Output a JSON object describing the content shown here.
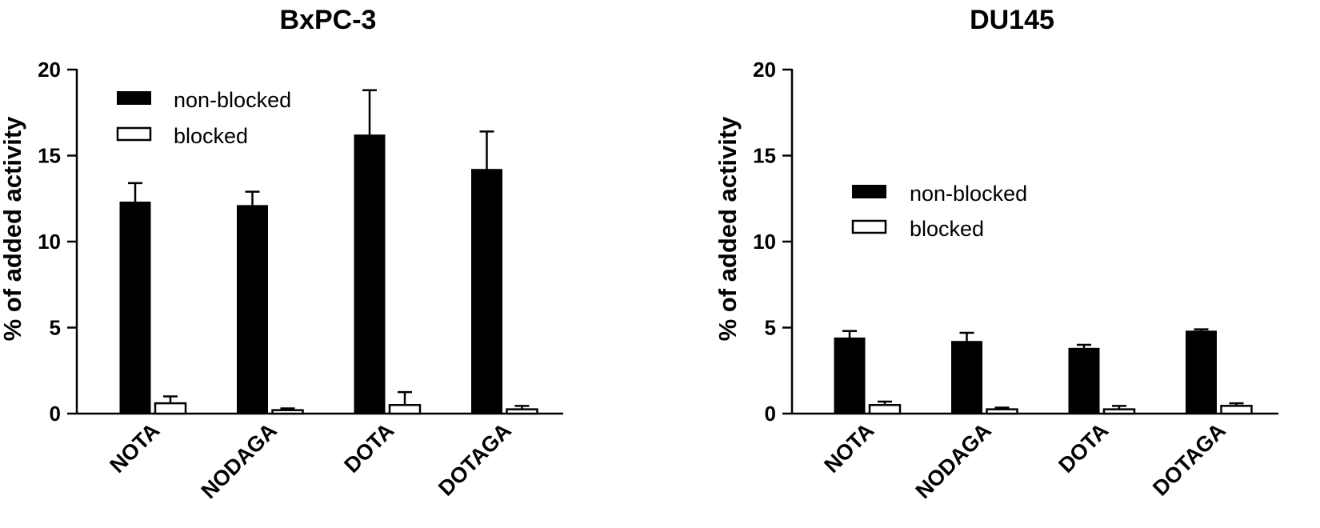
{
  "chart_data": [
    {
      "type": "bar",
      "title": "BxPC-3",
      "ylabel": "% of added activity",
      "xlabel": "",
      "ylim": [
        0,
        20
      ],
      "yticks": [
        0,
        5,
        10,
        15,
        20
      ],
      "categories": [
        "NOTA",
        "NODAGA",
        "DOTA",
        "DOTAGA"
      ],
      "series": [
        {
          "name": "non-blocked",
          "values": [
            12.3,
            12.1,
            16.2,
            14.2
          ],
          "errors": [
            1.1,
            0.8,
            2.6,
            2.2
          ],
          "color": "#000000"
        },
        {
          "name": "blocked",
          "values": [
            0.6,
            0.2,
            0.5,
            0.25
          ],
          "errors": [
            0.4,
            0.1,
            0.75,
            0.2
          ],
          "color": "#ffffff"
        }
      ],
      "legend": "top-left"
    },
    {
      "type": "bar",
      "title": "DU145",
      "ylabel": "% of added activity",
      "xlabel": "",
      "ylim": [
        0,
        20
      ],
      "yticks": [
        0,
        5,
        10,
        15,
        20
      ],
      "categories": [
        "NOTA",
        "NODAGA",
        "DOTA",
        "DOTAGA"
      ],
      "series": [
        {
          "name": "non-blocked",
          "values": [
            4.4,
            4.2,
            3.8,
            4.8
          ],
          "errors": [
            0.4,
            0.5,
            0.2,
            0.1
          ],
          "color": "#000000"
        },
        {
          "name": "blocked",
          "values": [
            0.5,
            0.25,
            0.25,
            0.45
          ],
          "errors": [
            0.2,
            0.1,
            0.2,
            0.15
          ],
          "color": "#ffffff"
        }
      ],
      "legend": "center-left"
    }
  ]
}
